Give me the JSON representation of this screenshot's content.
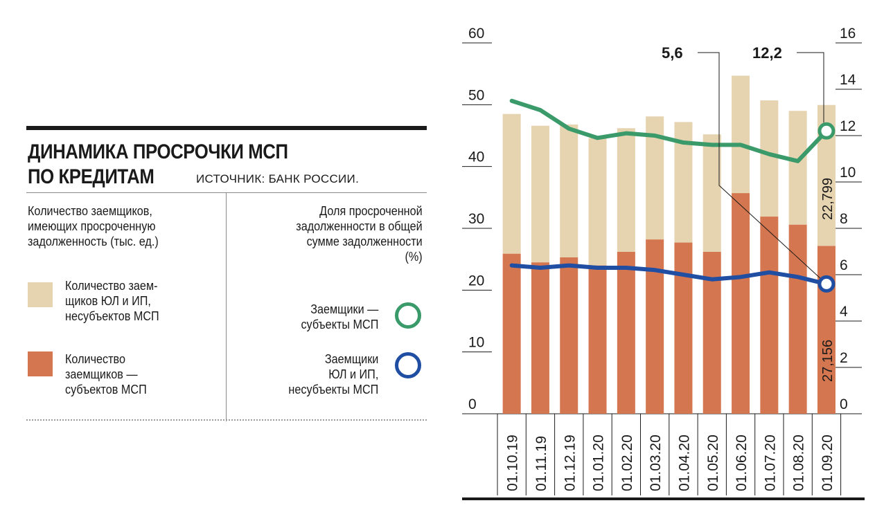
{
  "panel": {
    "title_line1": "ДИНАМИКА ПРОСРОЧКИ МСП",
    "title_line2": "ПО КРЕДИТАМ",
    "source": "ИСТОЧНИК: БАНК РОССИИ.",
    "left_header": [
      "Количество заемщиков,",
      "имеющих просроченную",
      "задолженность (тыс. ед.)"
    ],
    "right_header": [
      "Доля просроченной",
      "задолженности в общей",
      "сумме задолженности",
      "(%)"
    ],
    "legend_bar_nonsmb": [
      "Количество заем-",
      "щиков ЮЛ и ИП,",
      "несубъектов МСП"
    ],
    "legend_bar_smb": [
      "Количество",
      "заемщиков —",
      "субъектов МСП"
    ],
    "legend_line_smb": [
      "Заемщики —",
      "субъекты МСП"
    ],
    "legend_line_nonsmb": [
      "Заемщики",
      "ЮЛ и ИП,",
      "несубъекты МСП"
    ]
  },
  "colors": {
    "bar_smb": "#d4764f",
    "bar_nonsmb": "#e6d3b0",
    "line_smb": "#3a9a6a",
    "line_nonsmb": "#1f4ea3",
    "axis": "#1a1a1a"
  },
  "chart_data": {
    "type": "bar",
    "categories": [
      "01.10.19",
      "01.11.19",
      "01.12.19",
      "01.01.20",
      "01.02.20",
      "01.03.20",
      "01.04.20",
      "01.05.20",
      "01.06.20",
      "01.07.20",
      "01.08.20",
      "01.09.20"
    ],
    "left_axis": {
      "ylim": [
        0,
        60
      ],
      "ticks": [
        "0",
        "10",
        "20",
        "30",
        "40",
        "50",
        "60"
      ]
    },
    "right_axis": {
      "ylim": [
        0,
        16
      ],
      "ticks": [
        "0",
        "2",
        "4",
        "6",
        "8",
        "10",
        "12",
        "14",
        "16"
      ]
    },
    "bar_series": [
      {
        "key": "smb",
        "values": [
          25.9,
          24.5,
          25.3,
          24.0,
          26.2,
          28.2,
          27.7,
          26.2,
          35.7,
          31.9,
          30.6,
          27.156
        ]
      },
      {
        "key": "nonsmb",
        "values": [
          22.6,
          22.1,
          21.5,
          20.6,
          20.0,
          19.9,
          19.5,
          19.0,
          19.0,
          18.8,
          18.4,
          22.799
        ]
      }
    ],
    "line_series": [
      {
        "key": "smb",
        "values": [
          13.5,
          13.1,
          12.3,
          11.9,
          12.1,
          12.0,
          11.7,
          11.6,
          11.6,
          11.2,
          10.9,
          12.2
        ]
      },
      {
        "key": "nonsmb",
        "values": [
          6.4,
          6.3,
          6.4,
          6.3,
          6.3,
          6.2,
          6.0,
          5.8,
          5.9,
          6.1,
          5.9,
          5.6
        ]
      }
    ],
    "data_labels": {
      "bar_smb_last": "27,156",
      "bar_nonsmb_last": "22,799"
    },
    "callouts": {
      "line_nonsmb_last": "5,6",
      "line_smb_last": "12,2"
    }
  }
}
